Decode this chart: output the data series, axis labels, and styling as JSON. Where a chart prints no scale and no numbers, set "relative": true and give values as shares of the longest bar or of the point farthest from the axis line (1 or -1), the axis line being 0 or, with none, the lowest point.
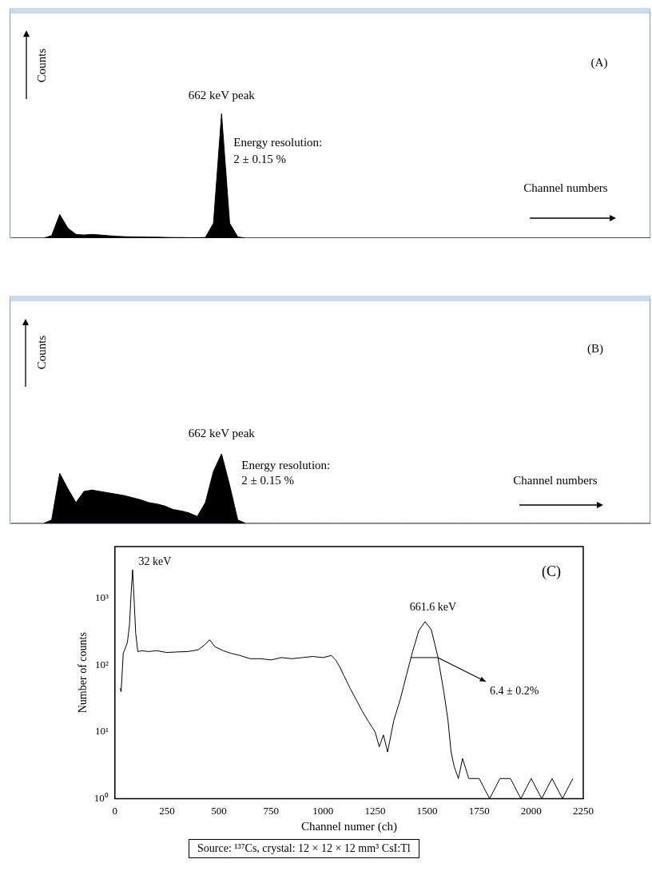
{
  "chart_data": [
    {
      "type": "area",
      "title": "(A)",
      "xlabel": "Channel numbers",
      "ylabel": "Counts",
      "relative": true,
      "color": "#000000",
      "categories": [
        null,
        null,
        null,
        null,
        null,
        null,
        null,
        null,
        null,
        null,
        null,
        null,
        null,
        null,
        null,
        null,
        null,
        null,
        null,
        null,
        null,
        null,
        null,
        null,
        null,
        null,
        null,
        null,
        null,
        null,
        null,
        null,
        null,
        null,
        null,
        null,
        null,
        null,
        null,
        null,
        null,
        null,
        null,
        null,
        null,
        null,
        null,
        null,
        null,
        null,
        null,
        null,
        null,
        null,
        null,
        null,
        null,
        null,
        null,
        null,
        null,
        null,
        null,
        null,
        null,
        null,
        null,
        null,
        null,
        null,
        null,
        null,
        null,
        null,
        null,
        null,
        null,
        null,
        null,
        null
      ],
      "values": [
        0,
        0,
        0,
        0,
        0,
        0.02,
        0.19,
        0.08,
        0.03,
        0.025,
        0.03,
        0.025,
        0.02,
        0.015,
        0.012,
        0.01,
        0.01,
        0.008,
        0.008,
        0.006,
        0.005,
        0.005,
        0.004,
        0.004,
        0.005,
        0.12,
        1,
        0.12,
        0.01,
        0,
        0,
        0,
        0,
        0,
        0,
        0,
        0,
        0,
        0,
        0,
        0,
        0,
        0,
        0,
        0,
        0,
        0,
        0,
        0,
        0,
        0,
        0,
        0,
        0,
        0,
        0,
        0,
        0,
        0,
        0,
        0,
        0,
        0,
        0,
        0,
        0,
        0,
        0,
        0,
        0,
        0,
        0,
        0,
        0,
        0,
        0,
        0,
        0,
        0,
        0
      ],
      "annotations": [
        "662 keV peak",
        "Energy resolution:",
        "2 ± 0.15 %"
      ]
    },
    {
      "type": "area",
      "title": "(B)",
      "xlabel": "Channel numbers",
      "ylabel": "Counts",
      "relative": true,
      "color": "#000000",
      "categories": [
        null,
        null,
        null,
        null,
        null,
        null,
        null,
        null,
        null,
        null,
        null,
        null,
        null,
        null,
        null,
        null,
        null,
        null,
        null,
        null,
        null,
        null,
        null,
        null,
        null,
        null,
        null,
        null,
        null,
        null,
        null,
        null,
        null,
        null,
        null,
        null,
        null,
        null,
        null,
        null,
        null,
        null,
        null,
        null,
        null,
        null,
        null,
        null,
        null,
        null,
        null,
        null,
        null,
        null,
        null,
        null,
        null,
        null,
        null,
        null,
        null,
        null,
        null,
        null,
        null,
        null,
        null,
        null,
        null,
        null,
        null,
        null,
        null,
        null,
        null,
        null,
        null,
        null,
        null,
        null
      ],
      "values": [
        0,
        0,
        0,
        0,
        0,
        0.05,
        0.72,
        0.5,
        0.3,
        0.46,
        0.48,
        0.46,
        0.44,
        0.42,
        0.4,
        0.37,
        0.34,
        0.3,
        0.28,
        0.25,
        0.2,
        0.18,
        0.15,
        0.1,
        0.3,
        0.75,
        1,
        0.55,
        0.05,
        0,
        0,
        0,
        0,
        0,
        0,
        0,
        0,
        0,
        0,
        0,
        0,
        0,
        0,
        0,
        0,
        0,
        0,
        0,
        0,
        0,
        0,
        0,
        0,
        0,
        0,
        0,
        0,
        0,
        0,
        0,
        0,
        0,
        0,
        0,
        0,
        0,
        0,
        0,
        0,
        0,
        0,
        0,
        0,
        0,
        0,
        0,
        0,
        0,
        0,
        0
      ],
      "annotations": [
        "662 keV peak",
        "Energy resolution:",
        "2 ± 0.15 %"
      ]
    },
    {
      "type": "line",
      "title": "(C)",
      "xlabel": "Channel numer (ch)",
      "ylabel": "Number of counts",
      "log": "y",
      "xlim": [
        0,
        2250
      ],
      "xticks": [
        0,
        250,
        500,
        750,
        1000,
        1250,
        1500,
        1750,
        2000,
        2250
      ],
      "ylim": [
        1,
        6000
      ],
      "yticks": [
        {
          "value": 1,
          "label": "10⁰"
        },
        {
          "value": 10,
          "label": "10¹"
        },
        {
          "value": 100,
          "label": "10²"
        },
        {
          "value": 1000,
          "label": "10³"
        }
      ],
      "series": [
        {
          "type": "line",
          "color": "#000000",
          "x": [
            25,
            30,
            40,
            50,
            60,
            70,
            78,
            85,
            92,
            100,
            110,
            130,
            160,
            200,
            250,
            300,
            350,
            400,
            430,
            455,
            480,
            520,
            560,
            600,
            650,
            700,
            750,
            800,
            850,
            900,
            950,
            1000,
            1040,
            1060,
            1080,
            1100,
            1130,
            1160,
            1190,
            1220,
            1250,
            1270,
            1290,
            1310,
            1340,
            1370,
            1400,
            1430,
            1460,
            1490,
            1520,
            1550,
            1580,
            1600,
            1615,
            1630,
            1650,
            1670,
            1700,
            1750,
            1800,
            1850,
            1900,
            1950,
            2000,
            2050,
            2100,
            2150,
            2200
          ],
          "values": [
            45,
            40,
            150,
            180,
            220,
            400,
            1200,
            2700,
            1000,
            300,
            160,
            165,
            160,
            165,
            155,
            158,
            160,
            170,
            200,
            240,
            190,
            165,
            150,
            140,
            125,
            125,
            120,
            130,
            125,
            130,
            135,
            130,
            140,
            120,
            95,
            70,
            45,
            30,
            20,
            14,
            10,
            6,
            9,
            5,
            15,
            30,
            70,
            160,
            330,
            450,
            340,
            140,
            40,
            15,
            5,
            3,
            2,
            4,
            2,
            2,
            1,
            2,
            2,
            1,
            2,
            1,
            2,
            1,
            2
          ]
        },
        {
          "type": "line",
          "color": "#000000",
          "x": [
            1420,
            1550
          ],
          "values": [
            130,
            130
          ]
        }
      ],
      "annotations": [
        "32 keV",
        "661.6 keV",
        {
          "text": "6.4 ± 0.2%",
          "x": 1550,
          "y": 130
        },
        "Source: ¹³⁷Cs, crystal: 12 × 12 × 12 mm³ CsI:Tl"
      ]
    }
  ]
}
